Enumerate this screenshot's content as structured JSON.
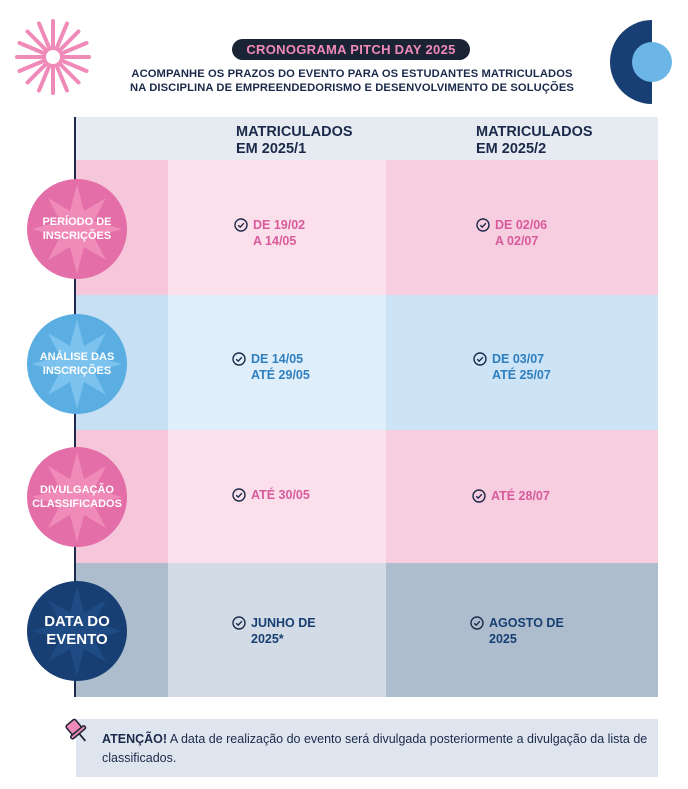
{
  "header": {
    "title": "CRONOGRAMA PITCH DAY 2025",
    "subtitle_line1": "ACOMPANHE OS PRAZOS DO EVENTO PARA OS ESTUDANTES MATRICULADOS",
    "subtitle_line2": "NA DISCIPLINA DE EMPREENDEDORISMO E DESENVOLVIMENTO DE SOLUÇÕES"
  },
  "columns": [
    "MATRICULADOS\nEM 2025/1",
    "MATRICULADOS\nEM 2025/2"
  ],
  "rows": [
    {
      "label": "PERÍODO DE\nINSCRIÇÕES",
      "v1": "DE 19/02\nA 14/05",
      "v2": "DE 02/06\nA 02/07"
    },
    {
      "label": "ANÁLISE DAS\nINSCRIÇÕES",
      "v1": "DE 14/05\nATÉ 29/05",
      "v2": "DE 03/07\nATÉ 25/07"
    },
    {
      "label": "DIVULGAÇÃO\nCLASSIFICADOS",
      "v1": "ATÉ 30/05",
      "v2": "ATÉ 28/07"
    },
    {
      "label": "DATA DO\nEVENTO",
      "v1": "JUNHO DE\n2025*",
      "v2": "AGOSTO DE\n2025"
    }
  ],
  "note": {
    "strong": "ATENÇÃO!",
    "text": " A data de realização do evento será divulgada posteriormente a divulgação da lista de classificados."
  },
  "icons": {
    "logo_left": "starburst-icon",
    "logo_right": "circle-logo-icon",
    "check": "check-circle-icon",
    "note": "pin-icon"
  },
  "colors": {
    "pink": "#e46ea8",
    "pink_text": "#d85a9a",
    "blue": "#5aaee2",
    "blue_text": "#2f7fbf",
    "navy": "#173f73",
    "dark": "#1b2435"
  }
}
